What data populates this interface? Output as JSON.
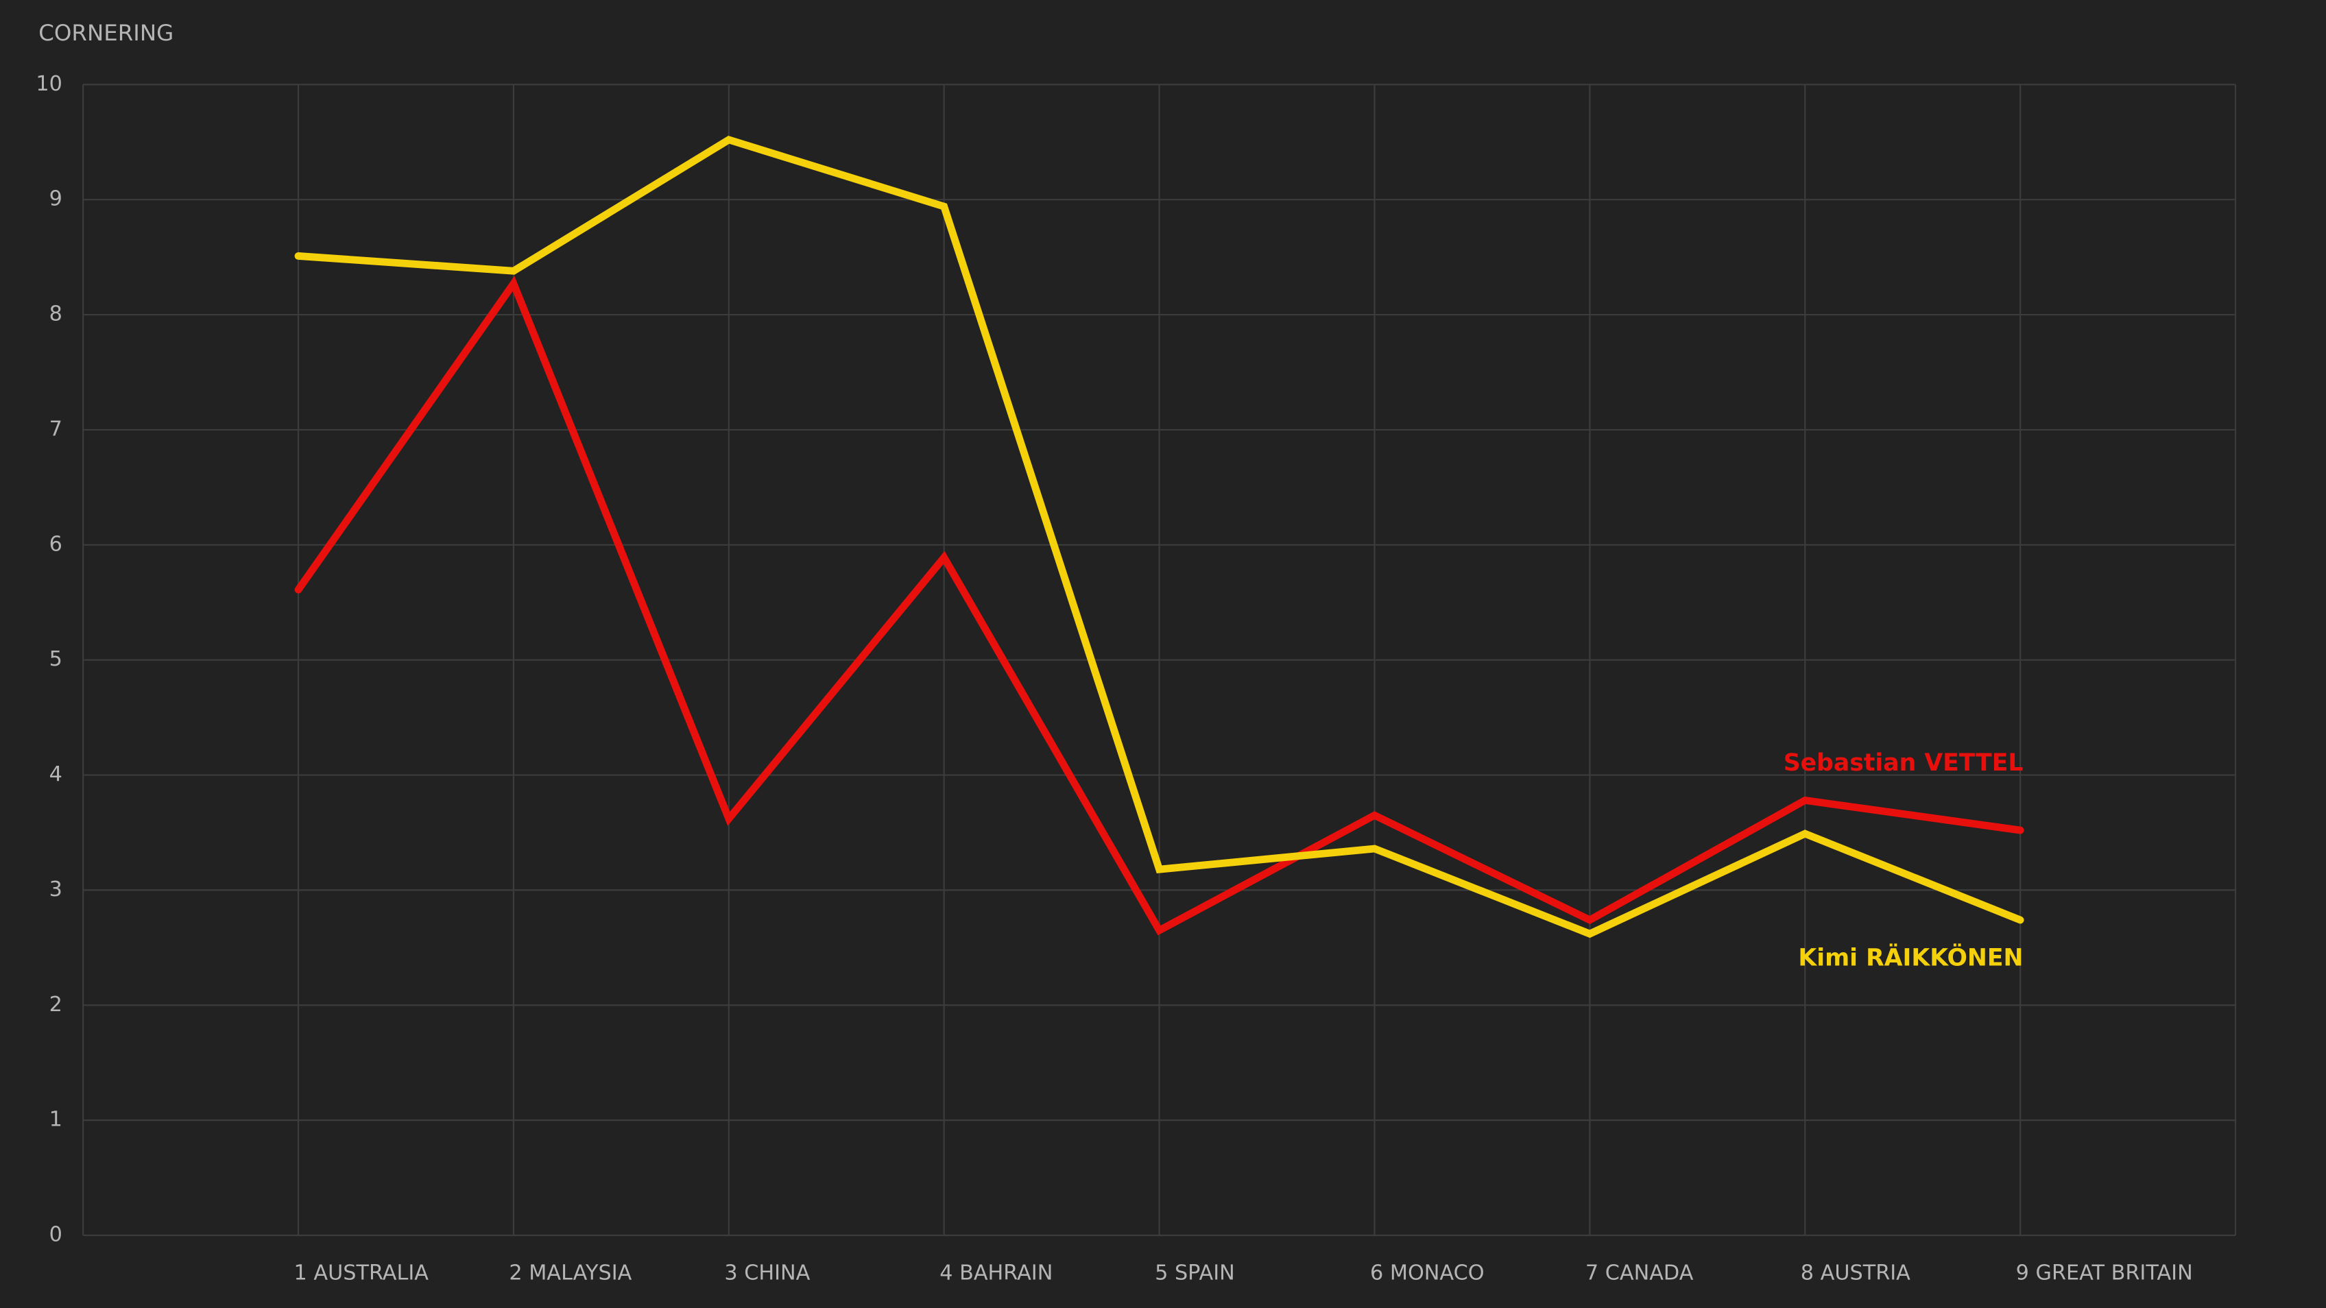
{
  "chart_data": {
    "type": "line",
    "title": "CORNERING",
    "categories": [
      "1 AUSTRALIA",
      "2 MALAYSIA",
      "3 CHINA",
      "4 BAHRAIN",
      "5 SPAIN",
      "6 MONACO",
      "7 CANADA",
      "8 AUSTRIA",
      "9 GREAT BRITAIN"
    ],
    "series": [
      {
        "name": "Sebastian VETTEL",
        "color": "#e8100c",
        "values": [
          5.61,
          8.27,
          3.62,
          5.89,
          2.65,
          3.65,
          2.74,
          3.78,
          3.52
        ]
      },
      {
        "name": "Kimi RÄIKKÖNEN",
        "color": "#f5d10c",
        "values": [
          8.51,
          8.38,
          9.52,
          8.94,
          3.18,
          3.36,
          2.62,
          3.49,
          2.74
        ]
      }
    ],
    "ylim": [
      0,
      10
    ],
    "yticks": [
      0,
      1,
      2,
      3,
      4,
      5,
      6,
      7,
      8,
      9,
      10
    ],
    "grid": true
  }
}
